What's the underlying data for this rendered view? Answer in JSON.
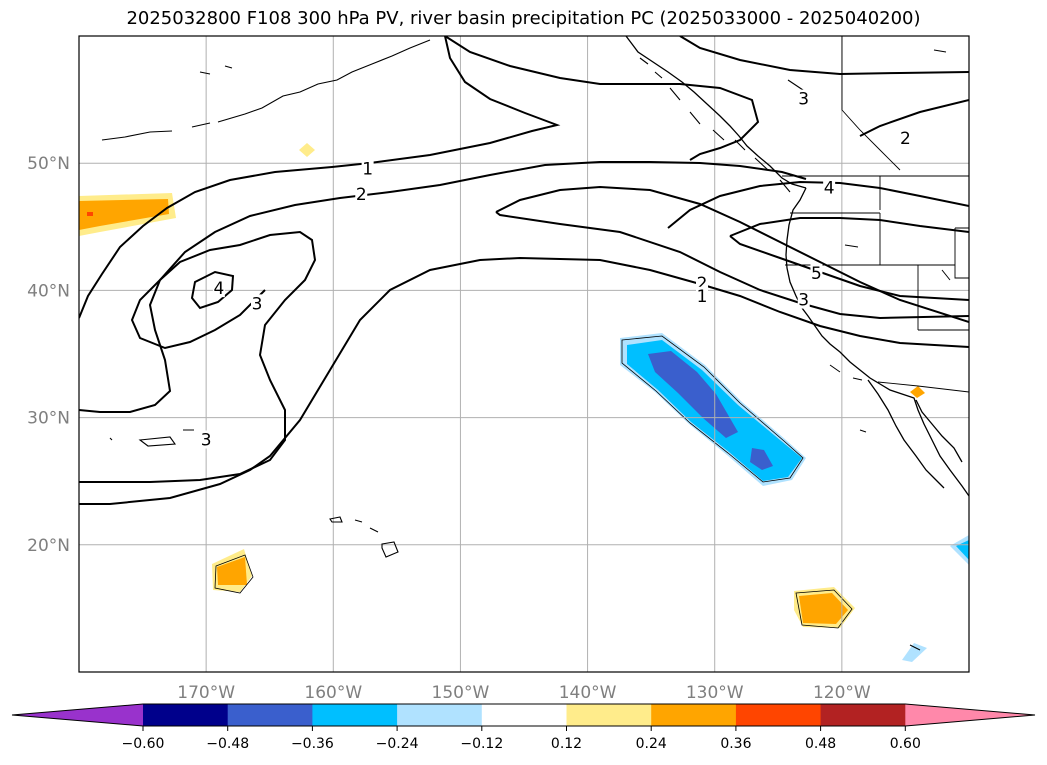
{
  "title": "2025032800 F108 300 hPa PV, river basin precipitation PC (2025033000 - 2025040200)",
  "map": {
    "lon_range": [
      -180,
      -110
    ],
    "lat_range": [
      10,
      60
    ],
    "grid": true,
    "lon_ticks": [
      {
        "value": -170,
        "label": "170°W"
      },
      {
        "value": -160,
        "label": "160°W"
      },
      {
        "value": -150,
        "label": "150°W"
      },
      {
        "value": -140,
        "label": "140°W"
      },
      {
        "value": -130,
        "label": "130°W"
      },
      {
        "value": -120,
        "label": "120°W"
      }
    ],
    "lat_ticks": [
      {
        "value": 50,
        "label": "50°N"
      },
      {
        "value": 40,
        "label": "40°N"
      },
      {
        "value": 30,
        "label": "30°N"
      },
      {
        "value": 20,
        "label": "20°N"
      }
    ],
    "pv_contour_labels": [
      {
        "text": "1",
        "lon": -157.3,
        "lat": 49.5
      },
      {
        "text": "2",
        "lon": -157.8,
        "lat": 47.5
      },
      {
        "text": "4",
        "lon": -169.0,
        "lat": 40.1
      },
      {
        "text": "3",
        "lon": -166.0,
        "lat": 38.9
      },
      {
        "text": "3",
        "lon": -170.0,
        "lat": 28.2
      },
      {
        "text": "3",
        "lon": -123.0,
        "lat": 55.0
      },
      {
        "text": "2",
        "lon": -115.0,
        "lat": 51.9
      },
      {
        "text": "4",
        "lon": -121.0,
        "lat": 48.0
      },
      {
        "text": "5",
        "lon": -122.0,
        "lat": 41.3
      },
      {
        "text": "2",
        "lon": -131.0,
        "lat": 40.5
      },
      {
        "text": "1",
        "lon": -131.0,
        "lat": 39.5
      },
      {
        "text": "3",
        "lon": -123.0,
        "lat": 39.2
      }
    ]
  },
  "colorbar": {
    "colors": [
      "#9932cc",
      "#00008b",
      "#3a5fcd",
      "#00bfff",
      "#b0e2ff",
      "#ffffff",
      "#ffec8b",
      "#ffa500",
      "#ff4500",
      "#b22222",
      "#ff88aa"
    ],
    "tick_labels": [
      "−0.60",
      "−0.48",
      "−0.36",
      "−0.24",
      "−0.12",
      "0.12",
      "0.24",
      "0.36",
      "0.48",
      "0.60"
    ]
  },
  "colors": {
    "grid": "#b0b0b0",
    "tick_text": "#7f7f7f",
    "negative_light": "#b0e2ff",
    "negative_mid": "#00bfff",
    "negative_strong": "#3a5fcd",
    "positive_light": "#ffec8b",
    "positive_mid": "#ffa500"
  }
}
